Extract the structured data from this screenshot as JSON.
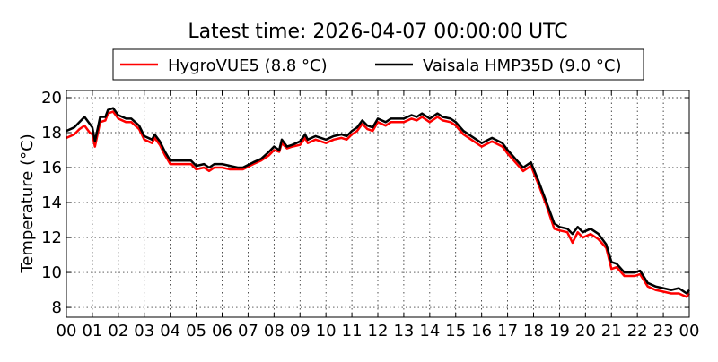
{
  "chart_data": {
    "type": "line",
    "title": "Latest time: 2026-04-07 00:00:00 UTC",
    "xlabel": "",
    "ylabel": "Temperature (°C)",
    "xlim": [
      0,
      24
    ],
    "ylim": [
      7.44,
      20.41
    ],
    "x_ticks": [
      0,
      1,
      2,
      3,
      4,
      5,
      6,
      7,
      8,
      9,
      10,
      11,
      12,
      13,
      14,
      15,
      16,
      17,
      18,
      19,
      20,
      21,
      22,
      23,
      24
    ],
    "x_tick_labels": [
      "00",
      "01",
      "02",
      "03",
      "04",
      "05",
      "06",
      "07",
      "08",
      "09",
      "10",
      "11",
      "12",
      "13",
      "14",
      "15",
      "16",
      "17",
      "18",
      "19",
      "20",
      "21",
      "22",
      "23",
      "00"
    ],
    "y_ticks": [
      8,
      10,
      12,
      14,
      16,
      18,
      20
    ],
    "y_tick_labels": [
      "8",
      "10",
      "12",
      "14",
      "16",
      "18",
      "20"
    ],
    "grid": true,
    "legend_placement": "top-center",
    "x": [
      0,
      0.3,
      0.5,
      0.7,
      0.9,
      1.0,
      1.1,
      1.3,
      1.5,
      1.6,
      1.8,
      2.0,
      2.3,
      2.5,
      2.8,
      3.0,
      3.3,
      3.4,
      3.6,
      3.8,
      4.0,
      4.3,
      4.6,
      4.8,
      5.0,
      5.3,
      5.5,
      5.7,
      6.0,
      6.3,
      6.6,
      6.8,
      7.2,
      7.5,
      7.8,
      8.0,
      8.2,
      8.3,
      8.5,
      8.7,
      9.0,
      9.2,
      9.3,
      9.6,
      10.0,
      10.3,
      10.6,
      10.8,
      11.0,
      11.2,
      11.4,
      11.6,
      11.8,
      12.0,
      12.3,
      12.5,
      12.7,
      13.0,
      13.3,
      13.5,
      13.7,
      14.0,
      14.3,
      14.5,
      14.8,
      15.0,
      15.3,
      15.6,
      16.0,
      16.4,
      16.8,
      17.0,
      17.3,
      17.6,
      17.9,
      18.2,
      18.5,
      18.8,
      19.0,
      19.3,
      19.5,
      19.7,
      19.9,
      20.2,
      20.5,
      20.8,
      21.0,
      21.2,
      21.5,
      21.9,
      22.1,
      22.4,
      22.7,
      23.0,
      23.3,
      23.6,
      23.9,
      24.0
    ],
    "series": [
      {
        "name": "HygroVUE5 (8.8 °C)",
        "color": "#ff0000",
        "values": [
          17.7,
          17.9,
          18.2,
          18.4,
          18.0,
          17.9,
          17.2,
          18.6,
          18.7,
          19.1,
          19.2,
          18.8,
          18.6,
          18.6,
          18.2,
          17.6,
          17.4,
          17.7,
          17.3,
          16.7,
          16.2,
          16.2,
          16.2,
          16.2,
          15.9,
          16.0,
          15.8,
          16.0,
          16.0,
          15.9,
          15.9,
          15.9,
          16.2,
          16.4,
          16.7,
          17.0,
          16.9,
          17.4,
          17.1,
          17.2,
          17.3,
          17.7,
          17.4,
          17.6,
          17.4,
          17.6,
          17.7,
          17.6,
          17.9,
          18.1,
          18.5,
          18.2,
          18.1,
          18.6,
          18.4,
          18.6,
          18.6,
          18.6,
          18.8,
          18.7,
          18.9,
          18.6,
          18.9,
          18.7,
          18.6,
          18.4,
          17.9,
          17.6,
          17.2,
          17.5,
          17.2,
          16.8,
          16.3,
          15.8,
          16.1,
          15.0,
          13.8,
          12.5,
          12.4,
          12.3,
          11.7,
          12.3,
          12.0,
          12.2,
          11.9,
          11.4,
          10.2,
          10.3,
          9.8,
          9.8,
          9.9,
          9.2,
          9.0,
          8.9,
          8.8,
          8.8,
          8.6,
          8.8
        ]
      },
      {
        "name": "Vaisala HMP35D (9.0 °C)",
        "color": "#000000",
        "values": [
          18.1,
          18.3,
          18.6,
          18.9,
          18.5,
          18.3,
          17.5,
          18.9,
          18.9,
          19.3,
          19.4,
          19.0,
          18.8,
          18.8,
          18.4,
          17.8,
          17.6,
          17.9,
          17.5,
          16.9,
          16.4,
          16.4,
          16.4,
          16.4,
          16.1,
          16.2,
          16.0,
          16.2,
          16.2,
          16.1,
          16.0,
          16.0,
          16.3,
          16.5,
          16.9,
          17.2,
          17.0,
          17.6,
          17.2,
          17.3,
          17.5,
          17.9,
          17.6,
          17.8,
          17.6,
          17.8,
          17.9,
          17.8,
          18.1,
          18.3,
          18.7,
          18.4,
          18.3,
          18.8,
          18.6,
          18.8,
          18.8,
          18.8,
          19.0,
          18.9,
          19.1,
          18.8,
          19.1,
          18.9,
          18.8,
          18.6,
          18.1,
          17.8,
          17.4,
          17.7,
          17.4,
          17.0,
          16.5,
          16.0,
          16.3,
          15.2,
          14.0,
          12.8,
          12.6,
          12.5,
          12.2,
          12.6,
          12.3,
          12.5,
          12.2,
          11.6,
          10.6,
          10.5,
          10.0,
          10.0,
          10.1,
          9.4,
          9.2,
          9.1,
          9.0,
          9.1,
          8.8,
          9.0
        ]
      }
    ]
  }
}
